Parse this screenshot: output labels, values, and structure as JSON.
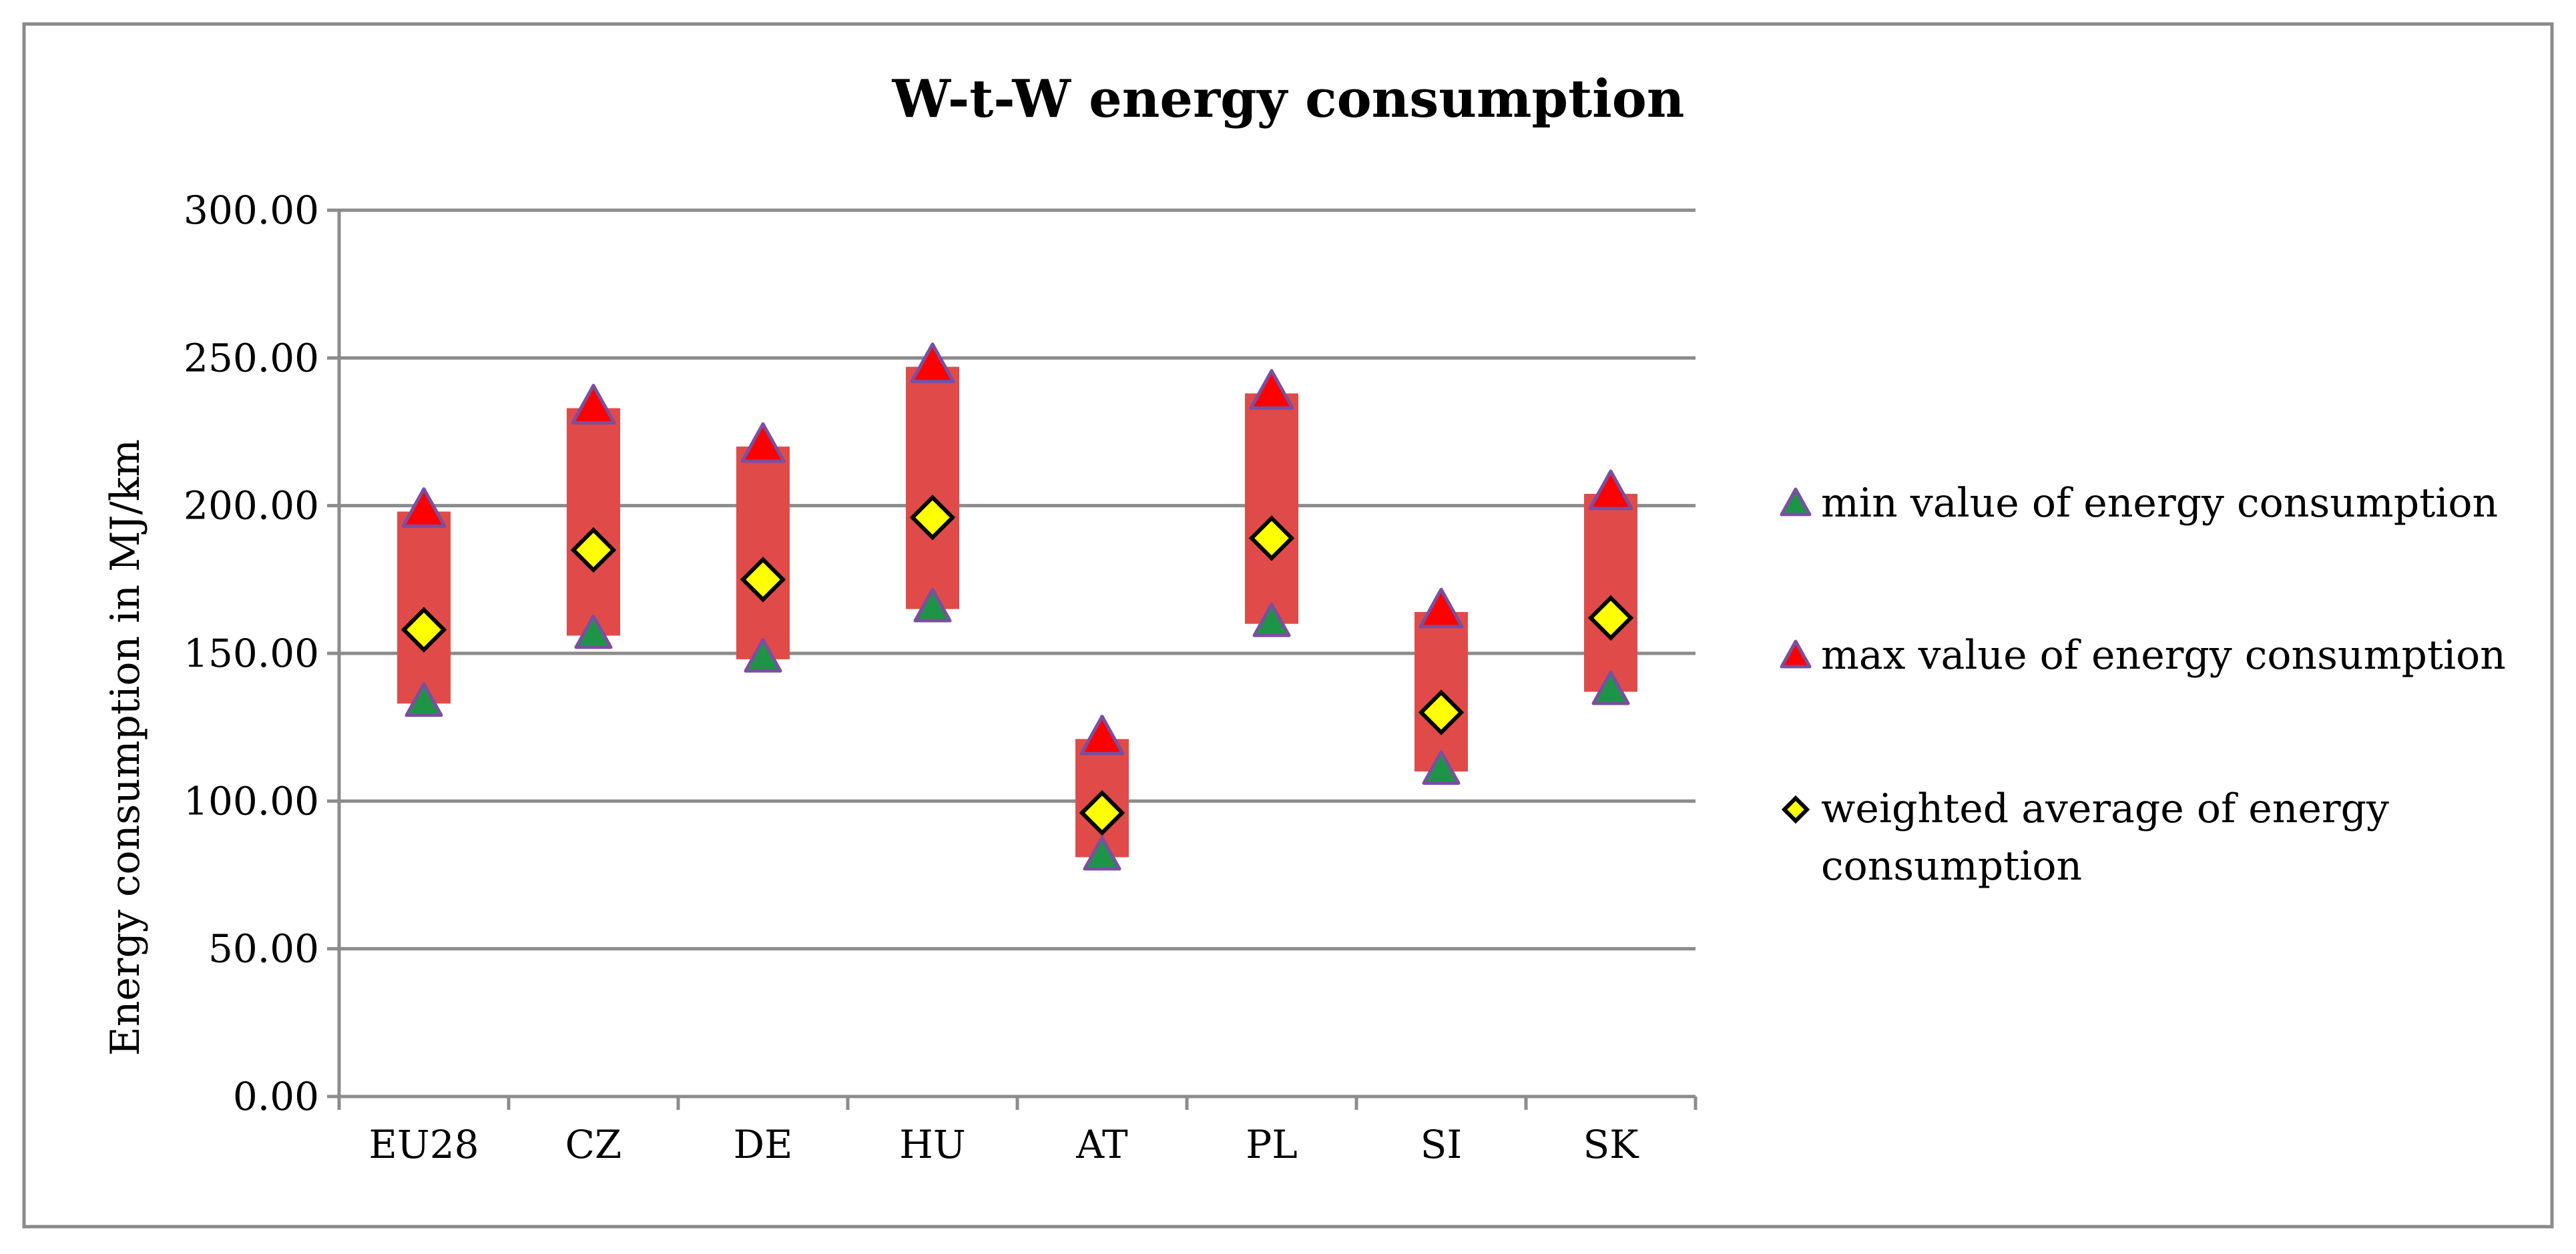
{
  "chart_data": {
    "type": "range",
    "title": "W-t-W energy consumption",
    "xlabel": "",
    "ylabel": "Energy consumption in MJ/km",
    "ylim": [
      0,
      300
    ],
    "yticks": [
      0,
      50,
      100,
      150,
      200,
      250,
      300
    ],
    "ytick_labels": [
      "0.00",
      "50.00",
      "100.00",
      "150.00",
      "200.00",
      "250.00",
      "300.00"
    ],
    "grid": true,
    "legend_position": "right",
    "categories": [
      "EU28",
      "CZ",
      "DE",
      "HU",
      "AT",
      "PL",
      "SI",
      "SK"
    ],
    "series": [
      {
        "name": "min value of energy consumption",
        "values": [
          133,
          156,
          148,
          165,
          81,
          160,
          110,
          137
        ],
        "marker": "triangle",
        "color": "#1e9447"
      },
      {
        "name": "max value of energy consumption",
        "values": [
          198,
          233,
          220,
          247,
          121,
          238,
          164,
          204
        ],
        "marker": "triangle",
        "color": "#ff0000"
      },
      {
        "name": "weighted average of energy consumption",
        "values": [
          158,
          185,
          175,
          196,
          96,
          189,
          130,
          162
        ],
        "marker": "diamond",
        "color": "#ffff00"
      }
    ],
    "range_bar_color": "#e04b49",
    "marker_outline_color": "#7a4fa0"
  }
}
